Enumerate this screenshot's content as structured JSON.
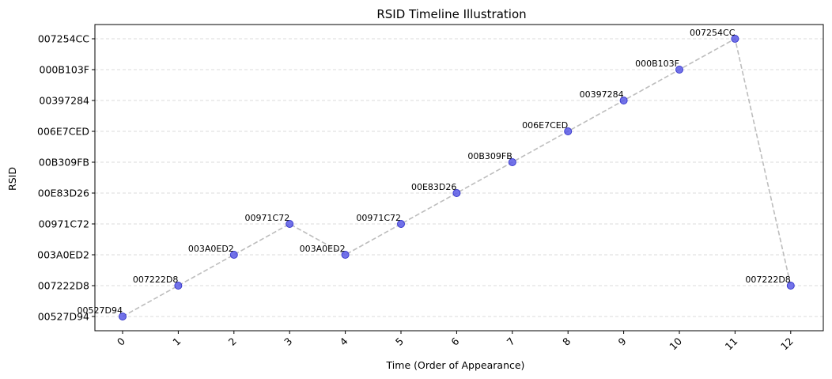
{
  "chart_data": {
    "type": "line",
    "title": "RSID Timeline Illustration",
    "xlabel": "Time (Order of Appearance)",
    "ylabel": "RSID",
    "x": [
      0,
      1,
      2,
      3,
      4,
      5,
      6,
      7,
      8,
      9,
      10,
      11,
      12
    ],
    "x_ticks": [
      "0",
      "1",
      "2",
      "3",
      "4",
      "5",
      "6",
      "7",
      "8",
      "9",
      "10",
      "11",
      "12"
    ],
    "categories_y": [
      "00527D94",
      "007222D8",
      "003A0ED2",
      "00971C72",
      "00E83D26",
      "00B309FB",
      "006E7CED",
      "00397284",
      "000B103F",
      "007254CC"
    ],
    "points": [
      {
        "x": 0,
        "y": "00527D94"
      },
      {
        "x": 1,
        "y": "007222D8"
      },
      {
        "x": 2,
        "y": "003A0ED2"
      },
      {
        "x": 3,
        "y": "00971C72"
      },
      {
        "x": 4,
        "y": "003A0ED2"
      },
      {
        "x": 5,
        "y": "00971C72"
      },
      {
        "x": 6,
        "y": "00E83D26"
      },
      {
        "x": 7,
        "y": "00B309FB"
      },
      {
        "x": 8,
        "y": "006E7CED"
      },
      {
        "x": 9,
        "y": "00397284"
      },
      {
        "x": 10,
        "y": "000B103F"
      },
      {
        "x": 11,
        "y": "007254CC"
      },
      {
        "x": 12,
        "y": "007222D8"
      }
    ],
    "grid": "y-dashed",
    "colors": {
      "marker": "#5a5ae6",
      "line": "#bdbdbd"
    }
  }
}
